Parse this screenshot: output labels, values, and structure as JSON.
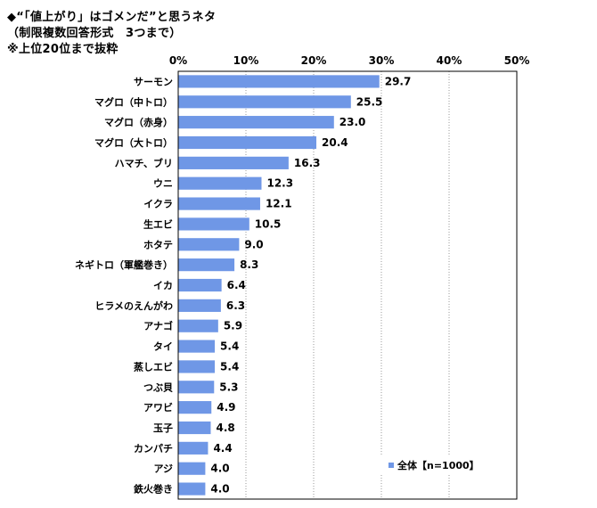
{
  "header": {
    "title": "◆“「値上がり」はゴメンだ”と思うネタ",
    "subtitle": "（制限複数回答形式　3つまで）",
    "note": "※上位20位まで抜粋"
  },
  "chart_data": {
    "type": "bar",
    "orientation": "horizontal",
    "categories": [
      "サーモン",
      "マグロ（中トロ）",
      "マグロ（赤身）",
      "マグロ（大トロ）",
      "ハマチ、ブリ",
      "ウニ",
      "イクラ",
      "生エビ",
      "ホタテ",
      "ネギトロ（軍艦巻き）",
      "イカ",
      "ヒラメのえんがわ",
      "アナゴ",
      "タイ",
      "蒸しエビ",
      "つぶ貝",
      "アワビ",
      "玉子",
      "カンパチ",
      "アジ",
      "鉄火巻き"
    ],
    "series": [
      {
        "name": "全体【n=1000】",
        "values": [
          29.7,
          25.5,
          23.0,
          20.4,
          16.3,
          12.3,
          12.1,
          10.5,
          9.0,
          8.3,
          6.4,
          6.3,
          5.9,
          5.4,
          5.4,
          5.3,
          4.9,
          4.8,
          4.4,
          4.0,
          4.0
        ],
        "value_labels": [
          "29.7",
          "25.5",
          "23.0",
          "20.4",
          "16.3",
          "12.3",
          "12.1",
          "10.5",
          "9.0",
          "8.3",
          "6.4",
          "6.3",
          "5.9",
          "5.4",
          "5.4",
          "5.3",
          "4.9",
          "4.8",
          "4.4",
          "4.0",
          "4.0"
        ],
        "color": "#6f97e6"
      }
    ],
    "xlim": [
      0,
      50
    ],
    "xticks": [
      0,
      10,
      20,
      30,
      40,
      50
    ],
    "xtick_labels": [
      "0%",
      "10%",
      "20%",
      "30%",
      "40%",
      "50%"
    ],
    "grid": "vertical-dotted",
    "legend_position": "bottom-right"
  }
}
